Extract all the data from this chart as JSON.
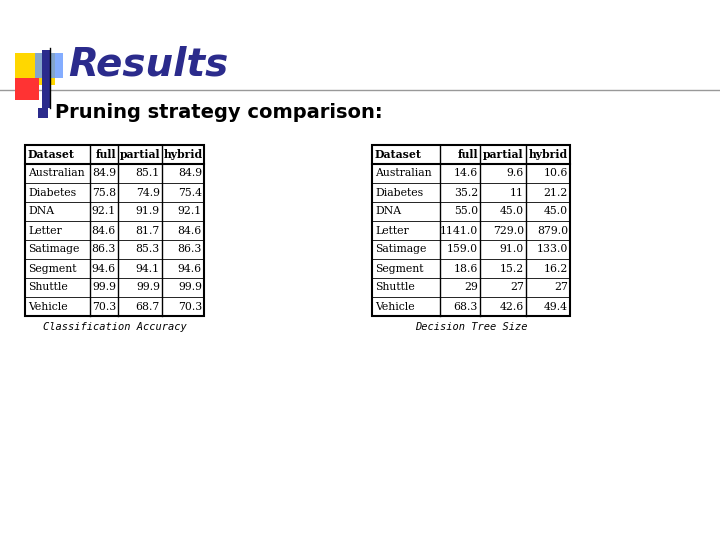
{
  "title": "Results",
  "bullet": "Pruning strategy comparison:",
  "table1_caption": "Classification Accuracy",
  "table2_caption": "Decision Tree Size",
  "table1_headers": [
    "Dataset",
    "full",
    "partial",
    "hybrid"
  ],
  "table2_headers": [
    "Dataset",
    "full",
    "partial",
    "hybrid"
  ],
  "table1_rows": [
    [
      "Australian",
      "84.9",
      "85.1",
      "84.9"
    ],
    [
      "Diabetes",
      "75.8",
      "74.9",
      "75.4"
    ],
    [
      "DNA",
      "92.1",
      "91.9",
      "92.1"
    ],
    [
      "Letter",
      "84.6",
      "81.7",
      "84.6"
    ],
    [
      "Satimage",
      "86.3",
      "85.3",
      "86.3"
    ],
    [
      "Segment",
      "94.6",
      "94.1",
      "94.6"
    ],
    [
      "Shuttle",
      "99.9",
      "99.9",
      "99.9"
    ],
    [
      "Vehicle",
      "70.3",
      "68.7",
      "70.3"
    ]
  ],
  "table2_rows": [
    [
      "Australian",
      "14.6",
      "9.6",
      "10.6"
    ],
    [
      "Diabetes",
      "35.2",
      "11",
      "21.2"
    ],
    [
      "DNA",
      "55.0",
      "45.0",
      "45.0"
    ],
    [
      "Letter",
      "1141.0",
      "729.0",
      "879.0"
    ],
    [
      "Satimage",
      "159.0",
      "91.0",
      "133.0"
    ],
    [
      "Segment",
      "18.6",
      "15.2",
      "16.2"
    ],
    [
      "Shuttle",
      "29",
      "27",
      "27"
    ],
    [
      "Vehicle",
      "68.3",
      "42.6",
      "49.4"
    ]
  ],
  "bg_color": "#ffffff",
  "title_color": "#2b2b8c",
  "bullet_color": "#000000",
  "bullet_square_color": "#2b2b8c",
  "border_color": "#000000",
  "logo_yellow": "#FFD700",
  "logo_red": "#FF3333",
  "logo_blue": "#2b2b8c",
  "logo_blue_light": "#6699ff"
}
